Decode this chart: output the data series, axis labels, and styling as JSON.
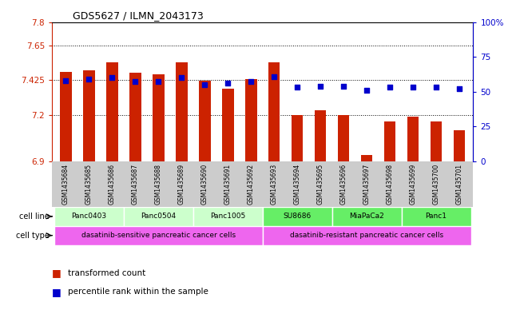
{
  "title": "GDS5627 / ILMN_2043173",
  "samples": [
    "GSM1435684",
    "GSM1435685",
    "GSM1435686",
    "GSM1435687",
    "GSM1435688",
    "GSM1435689",
    "GSM1435690",
    "GSM1435691",
    "GSM1435692",
    "GSM1435693",
    "GSM1435694",
    "GSM1435695",
    "GSM1435696",
    "GSM1435697",
    "GSM1435698",
    "GSM1435699",
    "GSM1435700",
    "GSM1435701"
  ],
  "bar_values": [
    7.48,
    7.49,
    7.54,
    7.47,
    7.46,
    7.54,
    7.42,
    7.37,
    7.43,
    7.54,
    7.2,
    7.23,
    7.2,
    6.94,
    7.16,
    7.19,
    7.16,
    7.1
  ],
  "percentile_values": [
    58,
    59,
    60,
    57,
    57,
    60,
    55,
    56,
    57,
    61,
    53,
    54,
    54,
    51,
    53,
    53,
    53,
    52
  ],
  "ylim_left": [
    6.9,
    7.8
  ],
  "ylim_right": [
    0,
    100
  ],
  "yticks_left": [
    6.9,
    7.2,
    7.425,
    7.65,
    7.8
  ],
  "ytick_labels_left": [
    "6.9",
    "7.2",
    "7.425",
    "7.65",
    "7.8"
  ],
  "yticks_right": [
    0,
    25,
    50,
    75,
    100
  ],
  "ytick_labels_right": [
    "0",
    "25",
    "50",
    "75",
    "100%"
  ],
  "bar_color": "#cc2200",
  "marker_color": "#0000cc",
  "cell_lines": [
    {
      "label": "Panc0403",
      "start": 0,
      "end": 3,
      "color": "#ccffcc"
    },
    {
      "label": "Panc0504",
      "start": 3,
      "end": 6,
      "color": "#ccffcc"
    },
    {
      "label": "Panc1005",
      "start": 6,
      "end": 9,
      "color": "#ccffcc"
    },
    {
      "label": "SU8686",
      "start": 9,
      "end": 12,
      "color": "#66ee66"
    },
    {
      "label": "MiaPaCa2",
      "start": 12,
      "end": 15,
      "color": "#66ee66"
    },
    {
      "label": "Panc1",
      "start": 15,
      "end": 18,
      "color": "#66ee66"
    }
  ],
  "cell_types": [
    {
      "label": "dasatinib-sensitive pancreatic cancer cells",
      "start": 0,
      "end": 9,
      "color": "#ee66ee"
    },
    {
      "label": "dasatinib-resistant pancreatic cancer cells",
      "start": 9,
      "end": 18,
      "color": "#ee66ee"
    }
  ],
  "sample_label_bg": "#cccccc",
  "legend_bar_label": "transformed count",
  "legend_marker_label": "percentile rank within the sample",
  "row_label_cell_line": "cell line",
  "row_label_cell_type": "cell type"
}
